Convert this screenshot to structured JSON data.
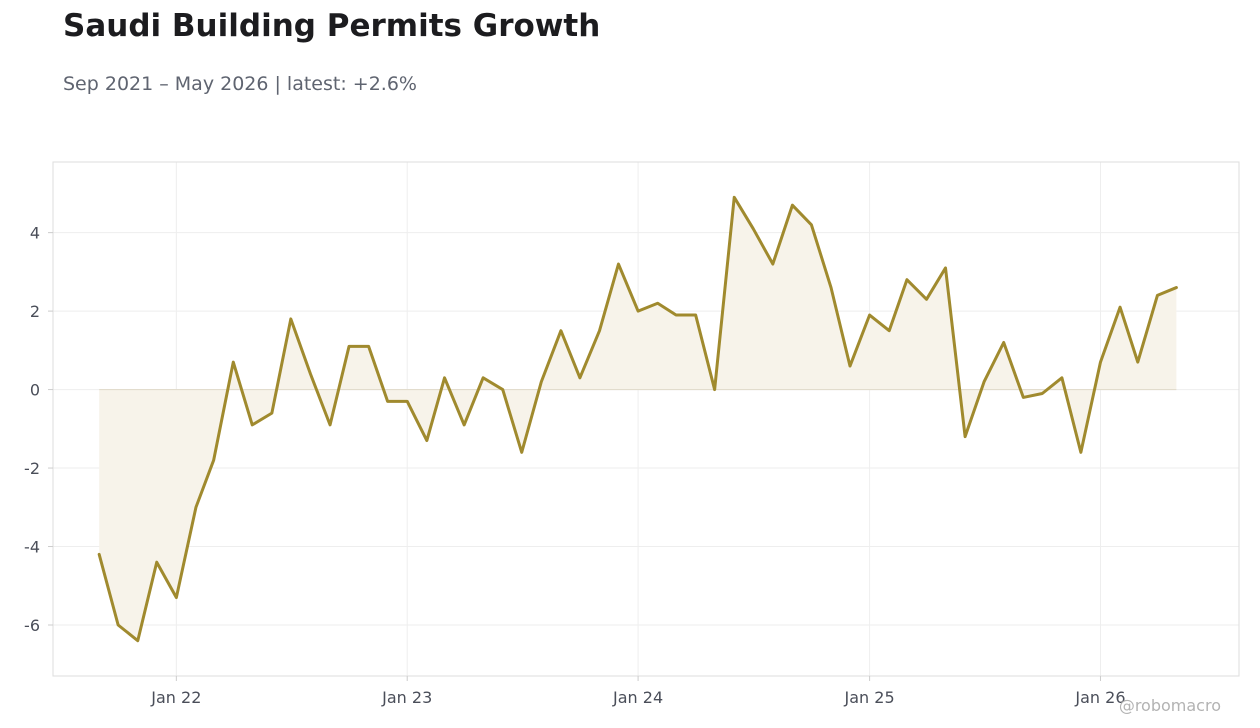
{
  "header": {
    "title": "Saudi Building Permits Growth",
    "subtitle": "Sep 2021 – May 2026 | latest: +2.6%"
  },
  "watermark": "@robomacro",
  "colors": {
    "line": "#a08a2e",
    "fill": "#f7f3ea",
    "grid": "#eeeeee",
    "frame": "#dddddd",
    "zero_line": "#e2dccd"
  },
  "chart_data": {
    "type": "area",
    "title": "Saudi Building Permits Growth",
    "subtitle": "Sep 2021 – May 2026 | latest: +2.6%",
    "xlabel": "",
    "ylabel": "",
    "ylim": [
      -7.3,
      5.8
    ],
    "xlim": [
      "2021-06-20",
      "2026-08-08"
    ],
    "yticks": [
      -6,
      -4,
      -2,
      0,
      2,
      4
    ],
    "ytick_labels": [
      "-6",
      "-4",
      "-2",
      "0",
      "2",
      "4"
    ],
    "xticks": [
      "2022-01-01",
      "2023-01-01",
      "2024-01-01",
      "2025-01-01",
      "2026-01-01"
    ],
    "xtick_labels": [
      "Jan 22",
      "Jan 23",
      "Jan 24",
      "Jan 25",
      "Jan 26"
    ],
    "grid": true,
    "legend": "none",
    "baseline": 0,
    "series": [
      {
        "x": [
          "2021-09",
          "2021-10",
          "2021-11",
          "2021-12",
          "2022-01",
          "2022-02",
          "2022-03",
          "2022-04",
          "2022-05",
          "2022-06",
          "2022-07",
          "2022-08",
          "2022-09",
          "2022-10",
          "2022-11",
          "2022-12",
          "2023-01",
          "2023-02",
          "2023-03",
          "2023-04",
          "2023-05",
          "2023-06",
          "2023-07",
          "2023-08",
          "2023-09",
          "2023-10",
          "2023-11",
          "2023-12",
          "2024-01",
          "2024-02",
          "2024-03",
          "2024-04",
          "2024-05",
          "2024-06",
          "2024-07",
          "2024-08",
          "2024-09",
          "2024-10",
          "2024-11",
          "2024-12",
          "2025-01",
          "2025-02",
          "2025-03",
          "2025-04",
          "2025-05",
          "2025-06",
          "2025-07",
          "2025-08",
          "2025-09",
          "2025-10",
          "2025-11",
          "2025-12",
          "2026-01",
          "2026-02",
          "2026-03",
          "2026-04",
          "2026-05"
        ],
        "values": [
          -4.2,
          -6.0,
          -6.4,
          -4.4,
          -5.3,
          -3.0,
          -1.8,
          0.7,
          -0.9,
          -0.6,
          1.8,
          0.4,
          -0.9,
          1.1,
          1.1,
          -0.3,
          -0.3,
          -1.3,
          0.3,
          -0.9,
          0.3,
          0.0,
          -1.6,
          0.2,
          1.5,
          0.3,
          1.5,
          3.2,
          2.0,
          2.2,
          1.9,
          1.9,
          0.0,
          4.9,
          4.1,
          3.2,
          4.7,
          4.2,
          2.6,
          0.6,
          1.9,
          1.5,
          2.8,
          2.3,
          3.1,
          -1.2,
          0.2,
          1.2,
          -0.2,
          -0.1,
          0.3,
          -1.6,
          0.7,
          2.1,
          0.7,
          2.4,
          2.6
        ]
      }
    ]
  }
}
